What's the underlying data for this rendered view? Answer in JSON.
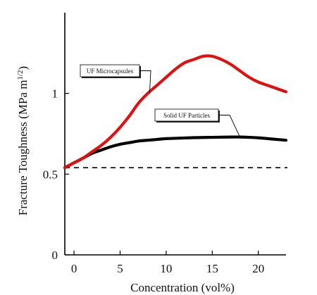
{
  "chart_data": {
    "type": "line",
    "xlabel": "Concentration (vol%)",
    "ylabel_main": "Fracture Toughness (MPa m",
    "ylabel_sup": "1/2",
    "ylabel_close": ")",
    "xlim": [
      -1,
      23
    ],
    "ylim": [
      0,
      1.5
    ],
    "xticks": [
      0,
      5,
      10,
      15,
      20
    ],
    "xtick_labels": [
      "0",
      "5",
      "10",
      "15",
      "20"
    ],
    "yticks": [
      0,
      0.5,
      1
    ],
    "ytick_labels": [
      "0",
      "0.5",
      "1"
    ],
    "grid": false,
    "reference_line": {
      "y": 0.54,
      "style": "dashed",
      "color": "#000000"
    },
    "series": [
      {
        "name": "UF Microcapsules",
        "color": "#e01010",
        "x": [
          -1,
          0,
          1,
          2,
          3,
          4,
          5,
          6,
          7,
          8,
          9,
          10,
          11,
          12,
          13,
          14,
          15,
          16,
          17,
          18,
          19,
          20,
          21,
          22,
          23
        ],
        "y": [
          0.54,
          0.57,
          0.6,
          0.64,
          0.68,
          0.73,
          0.79,
          0.86,
          0.94,
          1.0,
          1.05,
          1.1,
          1.15,
          1.19,
          1.21,
          1.23,
          1.23,
          1.21,
          1.18,
          1.14,
          1.1,
          1.07,
          1.05,
          1.03,
          1.01
        ]
      },
      {
        "name": "Solid UF Particles",
        "color": "#000000",
        "x": [
          -1,
          0,
          1,
          2,
          3,
          4,
          5,
          6,
          7,
          8,
          9,
          10,
          11,
          12,
          13,
          14,
          15,
          16,
          17,
          18,
          19,
          20,
          21,
          22,
          23
        ],
        "y": [
          0.54,
          0.57,
          0.6,
          0.63,
          0.65,
          0.67,
          0.685,
          0.695,
          0.705,
          0.71,
          0.715,
          0.72,
          0.722,
          0.724,
          0.726,
          0.727,
          0.728,
          0.729,
          0.73,
          0.73,
          0.728,
          0.725,
          0.72,
          0.715,
          0.71
        ]
      }
    ],
    "annotations": [
      {
        "text": "UF Microcapsules",
        "series": 0,
        "anchor_x": 8.2,
        "anchor_y": 1.0
      },
      {
        "text": "Solid UF Particles",
        "series": 1,
        "anchor_x": 18.0,
        "anchor_y": 0.73
      }
    ]
  }
}
